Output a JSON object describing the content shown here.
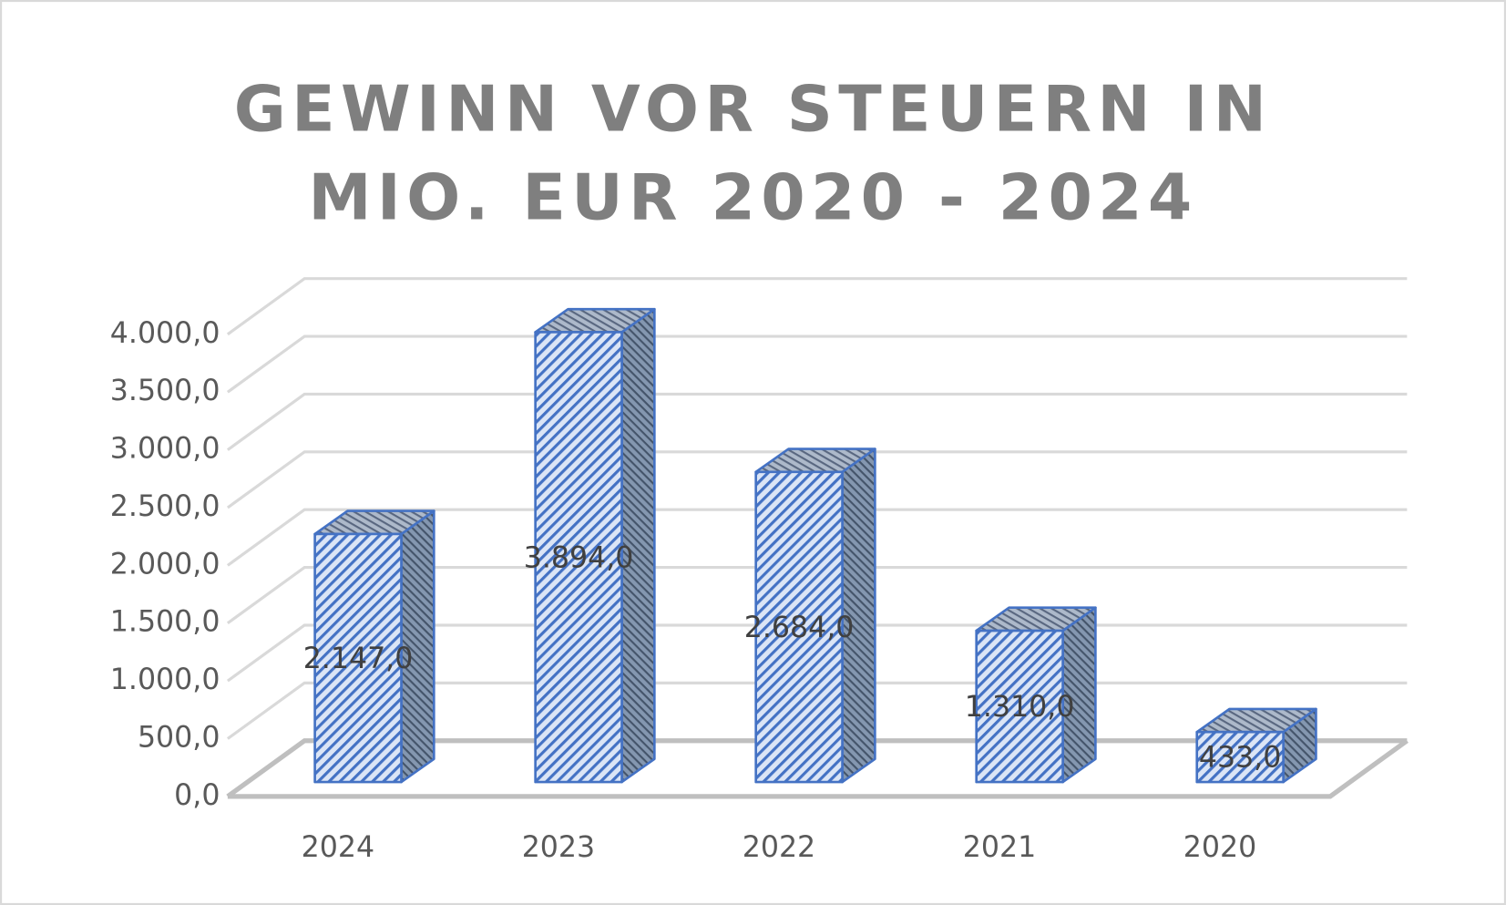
{
  "chart_data": {
    "type": "bar3d",
    "title": "GEWINN VOR STEUERN IN MIO. EUR 2020 - 2024",
    "categories": [
      "2024",
      "2023",
      "2022",
      "2021",
      "2020"
    ],
    "values": [
      2147,
      3894,
      2684,
      1310,
      433
    ],
    "value_labels": [
      "2.147,0",
      "3.894,0",
      "2.684,0",
      "1.310,0",
      "433,0"
    ],
    "color": "#4472c4",
    "ylim": [
      0,
      4000
    ],
    "yticks": [
      {
        "value": 0,
        "label": "0,0"
      },
      {
        "value": 500,
        "label": "500,0"
      },
      {
        "value": 1000,
        "label": "1.000,0"
      },
      {
        "value": 1500,
        "label": "1.500,0"
      },
      {
        "value": 2000,
        "label": "2.000,0"
      },
      {
        "value": 2500,
        "label": "2.500,0"
      },
      {
        "value": 3000,
        "label": "3.000,0"
      },
      {
        "value": 3500,
        "label": "3.500,0"
      },
      {
        "value": 4000,
        "label": "4.000,0"
      }
    ],
    "grid": true
  }
}
